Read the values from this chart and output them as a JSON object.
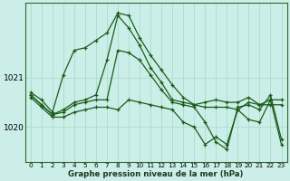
{
  "xlabel": "Graphe pression niveau de la mer (hPa)",
  "background_color": "#cceee8",
  "grid_color": "#aaddcc",
  "line_color": "#1a5c1a",
  "ylim": [
    1019.3,
    1022.5
  ],
  "yticks": [
    1020,
    1021
  ],
  "series": [
    [
      1020.7,
      1020.55,
      1020.3,
      1021.05,
      1021.55,
      1021.6,
      1021.75,
      1021.9,
      1022.3,
      1022.25,
      1021.8,
      1021.45,
      1021.15,
      1020.85,
      1020.6,
      1020.45,
      1020.4,
      1020.4,
      1020.4,
      1020.35,
      1020.5,
      1020.45,
      1020.45,
      1020.45
    ],
    [
      1020.65,
      1020.45,
      1020.25,
      1020.35,
      1020.5,
      1020.55,
      1020.65,
      1021.35,
      1022.25,
      1022.0,
      1021.65,
      1021.2,
      1020.9,
      1020.55,
      1020.5,
      1020.45,
      1020.5,
      1020.55,
      1020.5,
      1020.5,
      1020.6,
      1020.45,
      1020.55,
      1020.55
    ],
    [
      1020.65,
      1020.45,
      1020.25,
      1020.3,
      1020.45,
      1020.5,
      1020.55,
      1020.55,
      1021.55,
      1021.5,
      1021.35,
      1021.05,
      1020.75,
      1020.5,
      1020.45,
      1020.4,
      1020.1,
      1019.7,
      1019.55,
      1020.4,
      1020.45,
      1020.35,
      1020.65,
      1019.75
    ],
    [
      1020.6,
      1020.4,
      1020.2,
      1020.2,
      1020.3,
      1020.35,
      1020.4,
      1020.4,
      1020.35,
      1020.55,
      1020.5,
      1020.45,
      1020.4,
      1020.35,
      1020.1,
      1020.0,
      1019.65,
      1019.8,
      1019.65,
      1020.35,
      1020.15,
      1020.1,
      1020.55,
      1019.65
    ]
  ]
}
